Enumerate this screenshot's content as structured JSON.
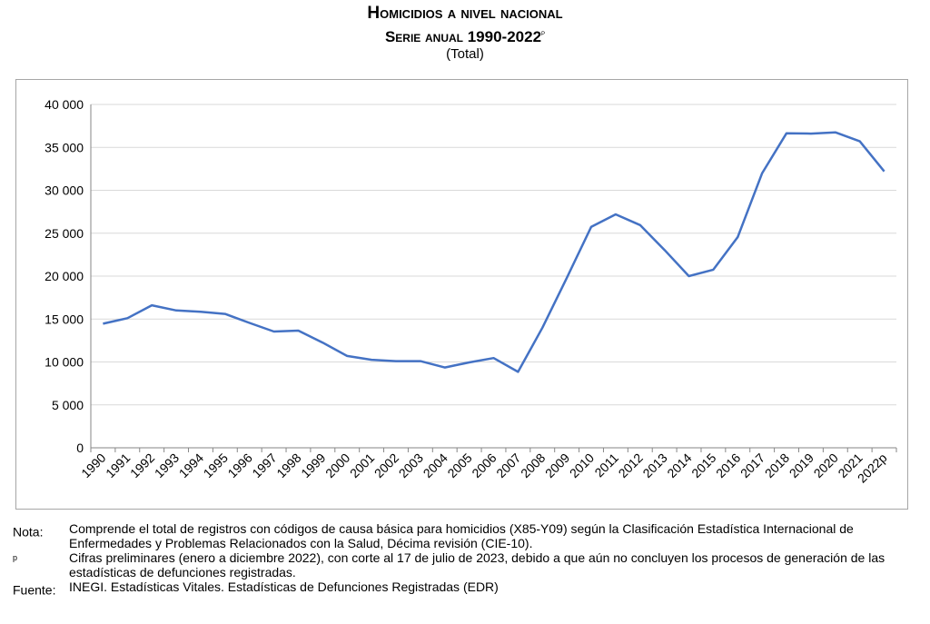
{
  "header": {
    "title": "Homicidios a nivel nacional",
    "subtitle": "Serie anual 1990-2022",
    "subtitle_mark": "p",
    "unit": "(Total)"
  },
  "chart_data": {
    "type": "line",
    "categories": [
      "1990",
      "1991",
      "1992",
      "1993",
      "1994",
      "1995",
      "1996",
      "1997",
      "1998",
      "1999",
      "2000",
      "2001",
      "2002",
      "2003",
      "2004",
      "2005",
      "2006",
      "2007",
      "2008",
      "2009",
      "2010",
      "2011",
      "2012",
      "2013",
      "2014",
      "2015",
      "2016",
      "2017",
      "2018",
      "2019",
      "2020",
      "2021",
      "2022p"
    ],
    "series": [
      {
        "values": [
          14450,
          15100,
          16600,
          16000,
          15850,
          15600,
          14550,
          13550,
          13650,
          12250,
          10700,
          10250,
          10100,
          10100,
          9350,
          9950,
          10450,
          8850,
          14000,
          19800,
          25750,
          27200,
          25950,
          23050,
          20000,
          20750,
          24550,
          32000,
          36650,
          36600,
          36750,
          35700,
          32200
        ]
      }
    ],
    "yticks": [
      "0",
      "5 000",
      "10 000",
      "15 000",
      "20 000",
      "25 000",
      "30 000",
      "35 000",
      "40 000"
    ],
    "ylim": [
      0,
      40000
    ],
    "xlabel": "",
    "ylabel": "",
    "grid": "horizontal",
    "line_color": "#4472c4",
    "grid_color": "#d9d9d9"
  },
  "notes": [
    {
      "key": "Nota:",
      "key_sup": "",
      "text": "Comprende el total de registros con códigos de causa básica para homicidios (X85-Y09) según la Clasificación Estadística Internacional de Enfermedades y Problemas Relacionados con la Salud, Décima revisión (CIE-10)."
    },
    {
      "key": "",
      "key_sup": "p",
      "text": "Cifras preliminares (enero a diciembre 2022), con corte al 17 de julio de 2023, debido a que aún no concluyen los procesos de generación de las estadísticas de defunciones registradas."
    },
    {
      "key": "Fuente:",
      "key_sup": "",
      "text": "INEGI. Estadísticas Vitales. Estadísticas de Defunciones Registradas (EDR)"
    }
  ]
}
